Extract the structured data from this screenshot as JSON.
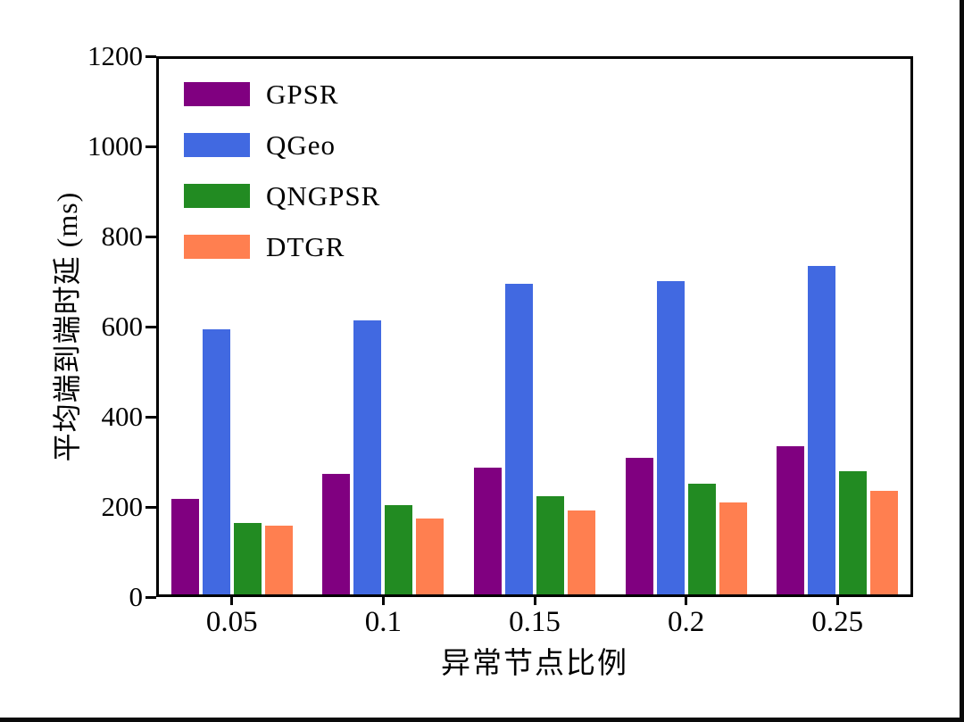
{
  "figure": {
    "background": "#ffffff",
    "edge_color": "#0a0a0a"
  },
  "chart_data": {
    "type": "bar",
    "title": "",
    "xlabel": "异常节点比例",
    "ylabel": "平均端到端时延 (ms)",
    "categories": [
      "0.05",
      "0.1",
      "0.15",
      "0.2",
      "0.25"
    ],
    "series": [
      {
        "name": "GPSR",
        "color": "#800080",
        "values": [
          215,
          270,
          285,
          306,
          332
        ]
      },
      {
        "name": "QGeo",
        "color": "#4169E1",
        "values": [
          594,
          614,
          696,
          702,
          737
        ]
      },
      {
        "name": "QNGPSR",
        "color": "#228B22",
        "values": [
          161,
          200,
          221,
          248,
          277
        ]
      },
      {
        "name": "DTGR",
        "color": "#FF7F50",
        "values": [
          154,
          170,
          189,
          206,
          233
        ]
      }
    ],
    "ylim": [
      0,
      1200
    ],
    "yticks": [
      0,
      200,
      400,
      600,
      800,
      1000,
      1200
    ],
    "legend_position": "upper-left",
    "grid": false,
    "axis_color": "#000000"
  }
}
